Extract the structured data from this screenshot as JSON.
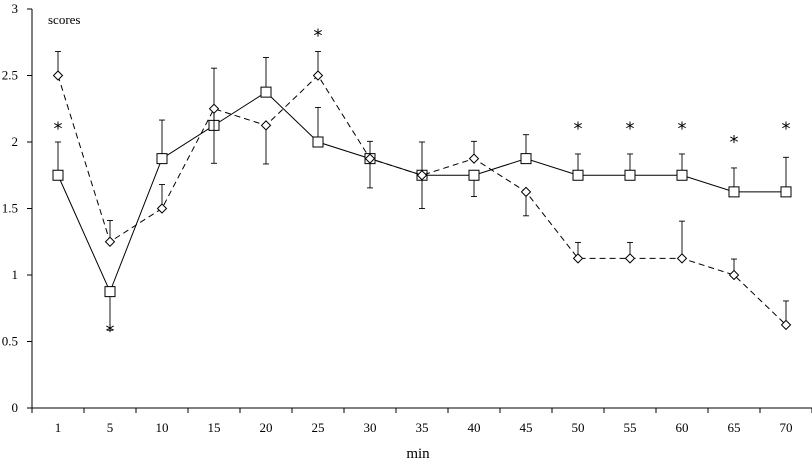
{
  "chart_data": {
    "type": "line",
    "xlabel": "min",
    "ylabel": "scores",
    "ylim": [
      0,
      3
    ],
    "yticks": [
      "0",
      "0.5",
      "1",
      "1.5",
      "2",
      "2.5",
      "3"
    ],
    "categories": [
      "1",
      "5",
      "10",
      "15",
      "20",
      "25",
      "30",
      "35",
      "40",
      "45",
      "50",
      "55",
      "60",
      "65",
      "70"
    ],
    "series": [
      {
        "marker": "square",
        "line": "solid",
        "values": [
          1.75,
          0.875,
          1.875,
          2.125,
          2.375,
          2.0,
          1.875,
          1.75,
          1.75,
          1.875,
          1.75,
          1.75,
          1.75,
          1.625,
          1.625
        ],
        "errors": [
          0.25,
          0.29,
          0.29,
          0.43,
          0.26,
          0.26,
          0.13,
          0.25,
          0.16,
          0.18,
          0.16,
          0.16,
          0.16,
          0.18,
          0.26
        ],
        "error_dir": [
          1,
          -1,
          1,
          1,
          1,
          1,
          1,
          1,
          -1,
          1,
          1,
          1,
          1,
          1,
          1
        ]
      },
      {
        "marker": "diamond",
        "line": "dashed",
        "values": [
          2.5,
          1.25,
          1.5,
          2.25,
          2.125,
          2.5,
          1.875,
          1.75,
          1.875,
          1.625,
          1.125,
          1.125,
          1.125,
          1.0,
          0.625
        ],
        "errors": [
          0.18,
          0.16,
          0.18,
          0.41,
          0.29,
          0.18,
          0.22,
          0.25,
          0.13,
          0.18,
          0.12,
          0.12,
          0.28,
          0.12,
          0.18
        ],
        "error_dir": [
          1,
          1,
          1,
          -1,
          -1,
          1,
          -1,
          -1,
          1,
          -1,
          1,
          1,
          1,
          1,
          1
        ]
      }
    ],
    "significance": [
      {
        "category": "1",
        "y": 2.1,
        "label": "*"
      },
      {
        "category": "5",
        "y": 0.58,
        "label": "*"
      },
      {
        "category": "25",
        "y": 2.8,
        "label": "*"
      },
      {
        "category": "50",
        "y": 2.1,
        "label": "*"
      },
      {
        "category": "55",
        "y": 2.1,
        "label": "*"
      },
      {
        "category": "60",
        "y": 2.1,
        "label": "*"
      },
      {
        "category": "65",
        "y": 2.0,
        "label": "*"
      },
      {
        "category": "70",
        "y": 2.1,
        "label": "*"
      }
    ],
    "grid": false
  }
}
